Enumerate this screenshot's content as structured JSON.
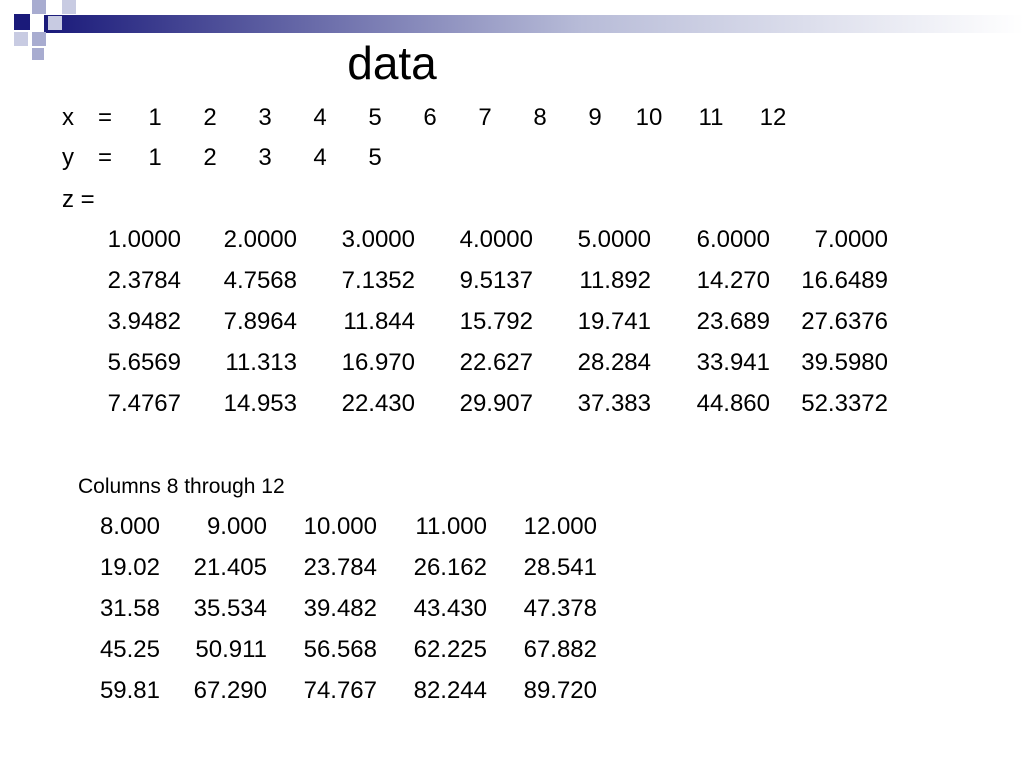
{
  "title": "data",
  "x_line": {
    "label": "x",
    "equals": "=",
    "values": [
      "1",
      "2",
      "3",
      "4",
      "5",
      "6",
      "7",
      "8",
      "9",
      "10",
      "11",
      "12"
    ]
  },
  "y_line": {
    "label": "y",
    "equals": "=",
    "values": [
      "1",
      "2",
      "3",
      "4",
      "5"
    ]
  },
  "z_line": {
    "label": "z ="
  },
  "block1": {
    "rows": [
      [
        "1.0000",
        "2.0000",
        "3.0000",
        "4.0000",
        "5.0000",
        "6.0000",
        "7.0000"
      ],
      [
        "2.3784",
        "4.7568",
        "7.1352",
        "9.5137",
        "11.892",
        "14.270",
        "16.6489"
      ],
      [
        "3.9482",
        "7.8964",
        "11.844",
        "15.792",
        "19.741",
        "23.689",
        "27.6376"
      ],
      [
        "5.6569",
        "11.313",
        "16.970",
        "22.627",
        "28.284",
        "33.941",
        "39.5980"
      ],
      [
        "7.4767",
        "14.953",
        "22.430",
        "29.907",
        "37.383",
        "44.860",
        "52.3372"
      ]
    ]
  },
  "block2": {
    "caption": "Columns 8 through 12",
    "rows": [
      [
        "8.000",
        "9.000",
        "10.000",
        "11.000",
        "12.000"
      ],
      [
        "19.02",
        "21.405",
        "23.784",
        "26.162",
        "28.541"
      ],
      [
        "31.58",
        "35.534",
        "39.482",
        "43.430",
        "47.378"
      ],
      [
        "45.25",
        "50.911",
        "56.568",
        "62.225",
        "67.882"
      ],
      [
        "59.81",
        "67.290",
        "74.767",
        "82.244",
        "89.720"
      ]
    ]
  }
}
